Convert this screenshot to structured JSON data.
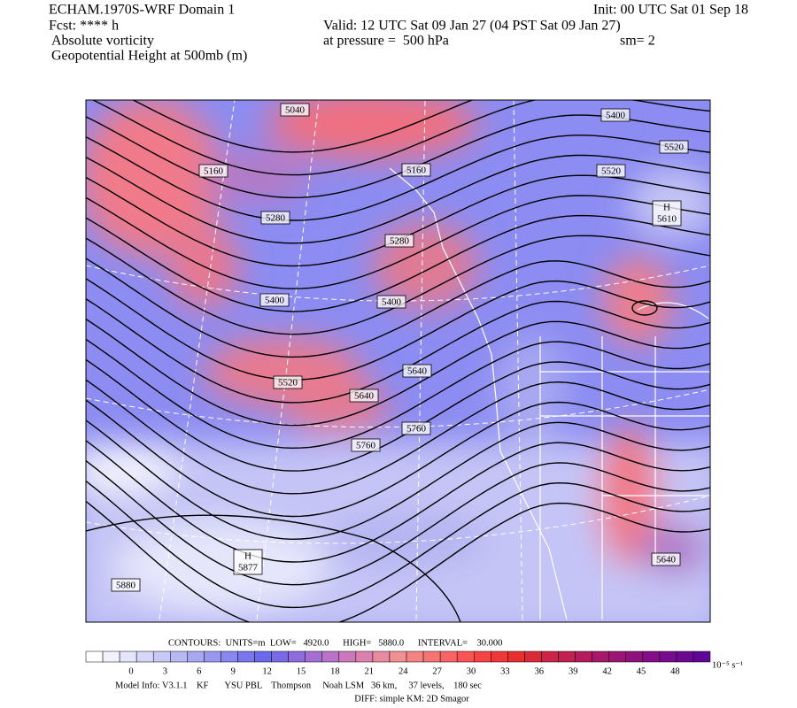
{
  "header": {
    "model": "ECHAM.1970S-WRF Domain 1",
    "forecast": "Fcst: **** h",
    "field1": "Absolute vorticity",
    "field2": "Geopotential Height at 500mb (m)",
    "init": "Init: 00 UTC Sat 01 Sep 18",
    "valid": "Valid: 12 UTC Sat 09 Jan 27 (04 PST Sat 09 Jan 27)",
    "pressure": "at pressure =  500 hPa",
    "smoothing": "sm= 2"
  },
  "map": {
    "contour_labels": [
      5040,
      5160,
      5160,
      5280,
      5280,
      5400,
      5400,
      5520,
      5640,
      5640,
      5760,
      5760,
      5400,
      5520,
      5520,
      5880,
      5640
    ],
    "highs": [
      {
        "symbol": "H",
        "value": 5610
      },
      {
        "symbol": "H",
        "value": 5877
      }
    ]
  },
  "contours_info": "CONTOURS:  UNITS=m  LOW=   4920.0      HIGH=   5880.0      INTERVAL=    30.000",
  "colorbar": {
    "labels": [
      0,
      3,
      6,
      9,
      12,
      15,
      18,
      21,
      24,
      27,
      30,
      33,
      36,
      39,
      42,
      45,
      48
    ],
    "units": "10⁻⁵ s⁻¹",
    "colors": [
      "#ffffff",
      "#f2f2fc",
      "#e4e4fa",
      "#d6d6f8",
      "#c8c8f6",
      "#b8b8f4",
      "#a8a8f2",
      "#9898f0",
      "#8888ee",
      "#7878ec",
      "#6a6aea",
      "#7a6ae6",
      "#8e6cde",
      "#a46ed4",
      "#b872c8",
      "#cc78bc",
      "#dc80ae",
      "#e88aa0",
      "#f09092",
      "#f48484",
      "#f67474",
      "#f86464",
      "#f85454",
      "#f64444",
      "#f03838",
      "#e63030",
      "#da2a3a",
      "#cc2446",
      "#c02052",
      "#b41c5e",
      "#a8186a",
      "#9c1474",
      "#90107e",
      "#840c86",
      "#780a8e",
      "#6c0892",
      "#600696"
    ]
  },
  "footer": {
    "model_info": "Model Info: V3.1.1    KF       YSU PBL    Thompson     Noah LSM   36 km,     37 levels,    180 sec",
    "diff": "DIFF: simple KM: 2D Smagor"
  }
}
